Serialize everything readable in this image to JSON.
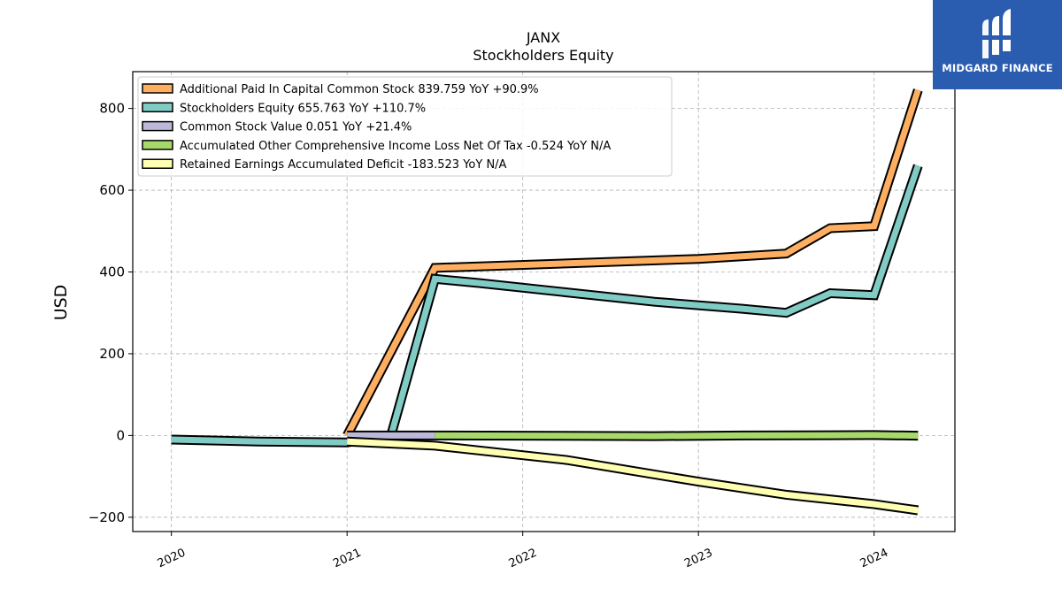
{
  "chart_data": {
    "type": "line",
    "title": "JANX",
    "subtitle": "Stockholders  Equity",
    "ylabel": "USD",
    "xlabel": "",
    "ylim": [
      -235,
      890
    ],
    "xlim": [
      2019.78,
      2024.46
    ],
    "yticks": [
      -200,
      0,
      200,
      400,
      600,
      800
    ],
    "ytick_labels": [
      "−200",
      "0",
      "200",
      "400",
      "600",
      "800"
    ],
    "xticks": [
      2020,
      2021,
      2022,
      2023,
      2024
    ],
    "xtick_labels": [
      "2020",
      "2021",
      "2022",
      "2023",
      "2024"
    ],
    "grid": true,
    "legend_position": "top-left",
    "series": [
      {
        "name": "Additional Paid In Capital Common Stock",
        "legend": "Additional Paid In Capital Common Stock  839.759 YoY +90.9%",
        "color": "#fdae61",
        "x": [
          2021.0,
          2021.5,
          2023.0,
          2023.5,
          2023.75,
          2024.0,
          2024.25
        ],
        "y": [
          0,
          410,
          432,
          445,
          507,
          512,
          845
        ]
      },
      {
        "name": "Stockholders Equity",
        "legend": "Stockholders Equity  655.763 YoY +110.7%",
        "color": "#80cbc4",
        "x": [
          2020.0,
          2020.5,
          2021.0,
          2021.25,
          2021.5,
          2021.75,
          2022.25,
          2022.75,
          2023.25,
          2023.5,
          2023.75,
          2024.0,
          2024.25
        ],
        "y": [
          -10,
          -15,
          -17,
          0,
          383,
          373,
          350,
          327,
          310,
          300,
          348,
          343,
          660
        ]
      },
      {
        "name": "Common Stock Value",
        "legend": "Common Stock Value  0.051 YoY +21.4%",
        "color": "#bcb8d8",
        "x": [
          2021.0,
          2021.5
        ],
        "y": [
          0.04,
          0.05
        ]
      },
      {
        "name": "Accumulated Other Comprehensive Income Loss Net Of Tax",
        "legend": "Accumulated Other Comprehensive Income Loss Net Of Tax  -0.524 YoY N/A",
        "color": "#a6d96a",
        "x": [
          2021.5,
          2022.0,
          2022.75,
          2023.25,
          2023.75,
          2024.0,
          2024.25
        ],
        "y": [
          0,
          -0.5,
          -1.5,
          0,
          0.5,
          1.0,
          -0.5
        ]
      },
      {
        "name": "Retained Earnings Accumulated Deficit",
        "legend": "Retained Earnings Accumulated Deficit  -183.523 YoY N/A",
        "color": "#ffffb3",
        "x": [
          2021.0,
          2021.5,
          2022.25,
          2023.0,
          2023.5,
          2024.0,
          2024.25
        ],
        "y": [
          -15,
          -25,
          -60,
          -113,
          -145,
          -168,
          -183
        ]
      }
    ]
  },
  "logo": {
    "text": "MIDGARD FINANCE",
    "name": "midgard-finance-logo"
  }
}
